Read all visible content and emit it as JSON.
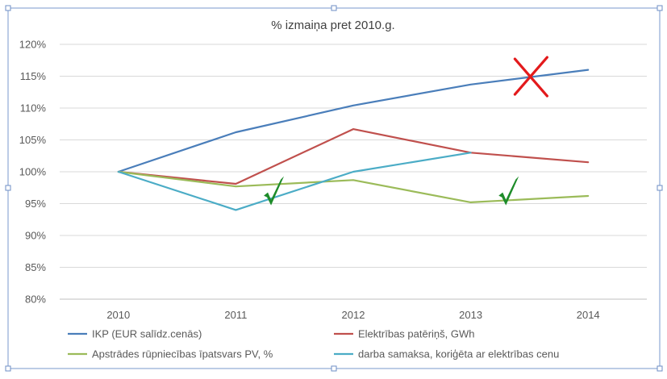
{
  "chart_data": {
    "type": "line",
    "title": "% izmaiņa pret 2010.g.",
    "categories": [
      "2010",
      "2011",
      "2012",
      "2013",
      "2014"
    ],
    "ylim": [
      0.8,
      1.2
    ],
    "yticks": [
      0.8,
      0.85,
      0.9,
      0.95,
      1.0,
      1.05,
      1.1,
      1.15,
      1.2
    ],
    "ytick_labels": [
      "80%",
      "85%",
      "90%",
      "95%",
      "100%",
      "105%",
      "110%",
      "115%",
      "120%"
    ],
    "grid": true,
    "legend_position": "bottom",
    "series": [
      {
        "name": "IKP (EUR salīdz.cenās)",
        "color": "#4a7eba",
        "values": [
          1.0,
          1.062,
          1.104,
          1.137,
          1.16
        ]
      },
      {
        "name": "Elektrības patēriņš, GWh",
        "color": "#c0504d",
        "values": [
          1.0,
          0.981,
          1.067,
          1.03,
          1.015
        ]
      },
      {
        "name": "Apstrādes rūpniecības īpatsvars PV, %",
        "color": "#9bbb59",
        "values": [
          1.0,
          0.977,
          0.987,
          0.952,
          0.962
        ]
      },
      {
        "name": "darba samaksa, koriģēta ar elektrības cenu",
        "color": "#4bacc6",
        "values": [
          1.0,
          0.94,
          1.0,
          1.03,
          null
        ]
      }
    ],
    "annotations": [
      {
        "type": "cross-mark",
        "color": "#e31a1c",
        "x_category": "2013",
        "x_offset": 0.5,
        "y": 1.148
      },
      {
        "type": "check-mark",
        "color": "#1e8c2a",
        "x_category": "2011",
        "x_offset": 0.3,
        "y": 0.96
      },
      {
        "type": "check-mark",
        "color": "#1e8c2a",
        "x_category": "2013",
        "x_offset": 0.3,
        "y": 0.96
      }
    ]
  }
}
